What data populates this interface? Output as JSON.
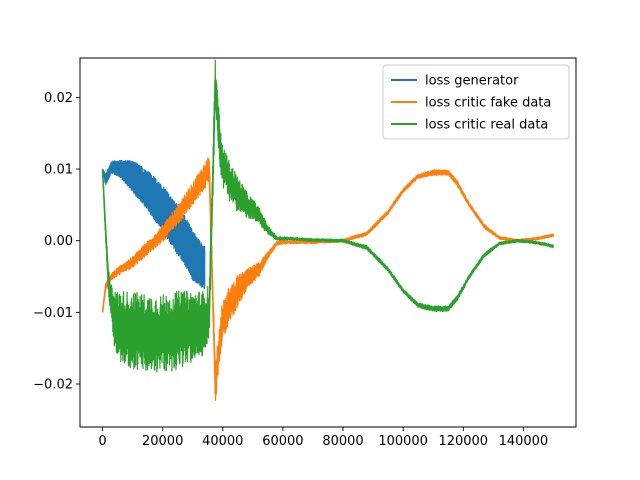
{
  "chart_data": {
    "type": "line",
    "title": "",
    "xlabel": "",
    "ylabel": "",
    "xlim": [
      -7500,
      157500
    ],
    "ylim": [
      -0.026,
      0.0255
    ],
    "xticks": [
      0,
      20000,
      40000,
      60000,
      80000,
      100000,
      120000,
      140000
    ],
    "xtick_labels": [
      "0",
      "20000",
      "40000",
      "60000",
      "80000",
      "100000",
      "120000",
      "140000"
    ],
    "yticks": [
      -0.02,
      -0.01,
      0.0,
      0.01,
      0.02
    ],
    "ytick_labels": [
      "−0.02",
      "−0.01",
      "0.00",
      "0.01",
      "0.02"
    ],
    "grid": false,
    "legend_position": "top-right",
    "series": [
      {
        "name": "loss generator",
        "color": "#1f77b4",
        "x": [
          0,
          1000,
          3000,
          6000,
          10000,
          15000,
          20000,
          25000,
          28000,
          30000,
          32000,
          34000
        ],
        "y": [
          0.01,
          0.0085,
          0.0103,
          0.01,
          0.009,
          0.007,
          0.0045,
          0.0015,
          -0.0005,
          -0.002,
          -0.003,
          -0.0038
        ],
        "noise": [
          0.0,
          0.0008,
          0.0008,
          0.0012,
          0.0022,
          0.0028,
          0.0032,
          0.0035,
          0.0035,
          0.0035,
          0.0032,
          0.003
        ]
      },
      {
        "name": "loss critic fake data",
        "color": "#ff7f0e",
        "x": [
          0,
          1000,
          3000,
          6000,
          10000,
          15000,
          20000,
          25000,
          30000,
          34000,
          35500,
          37500,
          39500,
          42000,
          45000,
          48000,
          52000,
          55000,
          58000,
          62000,
          70000,
          80000,
          88000,
          95000,
          100000,
          105000,
          110000,
          115000,
          118000,
          122000,
          127000,
          132000,
          138000,
          143000,
          147000,
          150000
        ],
        "y": [
          -0.01,
          -0.0065,
          -0.005,
          -0.004,
          -0.003,
          -0.001,
          0.001,
          0.0035,
          0.0065,
          0.009,
          0.01,
          -0.02,
          -0.012,
          -0.009,
          -0.007,
          -0.0055,
          -0.004,
          -0.002,
          -0.0003,
          -0.0002,
          -0.0002,
          0.0,
          0.001,
          0.004,
          0.007,
          0.009,
          0.0095,
          0.0095,
          0.008,
          0.005,
          0.002,
          0.0004,
          0.0,
          0.0002,
          0.0005,
          0.0008
        ],
        "noise": [
          0.0,
          0.0005,
          0.0005,
          0.0006,
          0.0008,
          0.001,
          0.0012,
          0.0014,
          0.0016,
          0.0018,
          0.002,
          0.003,
          0.0028,
          0.0025,
          0.0022,
          0.0015,
          0.001,
          0.0005,
          0.0003,
          0.0002,
          0.0002,
          0.0002,
          0.0003,
          0.0003,
          0.0003,
          0.0003,
          0.0004,
          0.0004,
          0.0004,
          0.0003,
          0.0003,
          0.0002,
          0.0002,
          0.0002,
          0.0002,
          0.0002
        ]
      },
      {
        "name": "loss critic real data",
        "color": "#2ca02c",
        "x": [
          0,
          800,
          2000,
          4000,
          6000,
          10000,
          15000,
          20000,
          25000,
          30000,
          34000,
          35500,
          37500,
          39500,
          42000,
          45000,
          48000,
          52000,
          55000,
          58000,
          62000,
          70000,
          80000,
          88000,
          95000,
          100000,
          105000,
          110000,
          115000,
          118000,
          122000,
          127000,
          132000,
          138000,
          143000,
          147000,
          150000
        ],
        "y": [
          0.01,
          0.003,
          -0.006,
          -0.011,
          -0.012,
          -0.0125,
          -0.013,
          -0.013,
          -0.0125,
          -0.012,
          -0.0115,
          -0.01,
          0.022,
          0.011,
          0.0085,
          0.0065,
          0.005,
          0.0035,
          0.0015,
          0.0003,
          0.0003,
          0.0001,
          0.0,
          -0.001,
          -0.004,
          -0.007,
          -0.009,
          -0.0095,
          -0.0095,
          -0.008,
          -0.005,
          -0.002,
          -0.0004,
          0.0,
          -0.0002,
          -0.0005,
          -0.0008
        ],
        "noise": [
          0.0,
          0.001,
          0.002,
          0.004,
          0.005,
          0.0055,
          0.0055,
          0.0055,
          0.0055,
          0.005,
          0.0045,
          0.004,
          0.0035,
          0.003,
          0.0028,
          0.0025,
          0.0018,
          0.0012,
          0.0006,
          0.0003,
          0.0002,
          0.0002,
          0.0002,
          0.0003,
          0.0003,
          0.0003,
          0.0003,
          0.0004,
          0.0004,
          0.0004,
          0.0003,
          0.0003,
          0.0002,
          0.0002,
          0.0002,
          0.0002,
          0.0002
        ]
      }
    ]
  }
}
